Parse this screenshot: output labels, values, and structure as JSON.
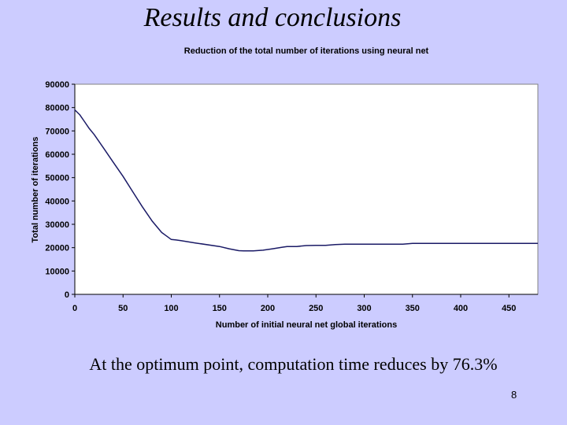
{
  "slide": {
    "title": "Results and conclusions",
    "footnote": "At the optimum point, computation time reduces by 76.3%",
    "page_number": "8"
  },
  "chart_data": {
    "type": "line",
    "title": "Reduction of the total number of iterations using neural net",
    "xlabel": "Number of initial neural net global iterations",
    "ylabel": "Total number of iterations",
    "xlim": [
      0,
      480
    ],
    "ylim": [
      0,
      90000
    ],
    "x_ticks": [
      0,
      50,
      100,
      150,
      200,
      250,
      300,
      350,
      400,
      450
    ],
    "y_ticks": [
      0,
      10000,
      20000,
      30000,
      40000,
      50000,
      60000,
      70000,
      80000,
      90000
    ],
    "grid": false,
    "legend": "none",
    "line_color": "#1a1a66",
    "plot_background": "#ffffff",
    "series": [
      {
        "x": [
          0,
          5,
          10,
          15,
          20,
          30,
          40,
          50,
          60,
          70,
          80,
          90,
          95,
          100,
          105,
          110,
          125,
          150,
          160,
          170,
          175,
          185,
          195,
          205,
          215,
          220,
          230,
          240,
          250,
          260,
          270,
          280,
          300,
          320,
          340,
          350,
          370,
          400,
          430,
          460,
          480
        ],
        "y": [
          79000,
          77000,
          74000,
          71000,
          68500,
          62500,
          56500,
          50500,
          44000,
          37500,
          31500,
          26500,
          25000,
          23500,
          23300,
          23000,
          22000,
          20500,
          19500,
          18700,
          18600,
          18600,
          18900,
          19500,
          20200,
          20500,
          20500,
          20900,
          21000,
          21000,
          21300,
          21500,
          21500,
          21500,
          21500,
          21800,
          21800,
          21800,
          21800,
          21800,
          21800
        ]
      }
    ]
  }
}
